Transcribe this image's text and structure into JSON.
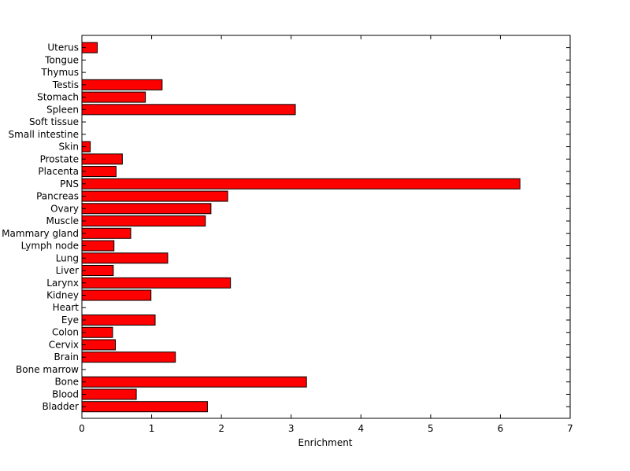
{
  "chart_data": {
    "type": "bar",
    "orientation": "horizontal",
    "title": "",
    "xlabel": "Enrichment",
    "ylabel": "",
    "xlim": [
      0,
      7
    ],
    "xticks": [
      0,
      1,
      2,
      3,
      4,
      5,
      6,
      7
    ],
    "grid": false,
    "bar_color": "#ff0000",
    "categories": [
      "Bladder",
      "Blood",
      "Bone",
      "Bone marrow",
      "Brain",
      "Cervix",
      "Colon",
      "Eye",
      "Heart",
      "Kidney",
      "Larynx",
      "Liver",
      "Lung",
      "Lymph node",
      "Mammary gland",
      "Muscle",
      "Ovary",
      "Pancreas",
      "PNS",
      "Placenta",
      "Prostate",
      "Skin",
      "Small intestine",
      "Soft tissue",
      "Spleen",
      "Stomach",
      "Testis",
      "Thymus",
      "Tongue",
      "Uterus"
    ],
    "values": [
      1.8,
      0.78,
      3.22,
      0.0,
      1.34,
      0.48,
      0.44,
      1.05,
      0.0,
      0.99,
      2.13,
      0.45,
      1.23,
      0.46,
      0.7,
      1.77,
      1.85,
      2.09,
      6.28,
      0.49,
      0.58,
      0.12,
      0.0,
      0.0,
      3.06,
      0.91,
      1.15,
      0.0,
      0.0,
      0.22
    ]
  }
}
